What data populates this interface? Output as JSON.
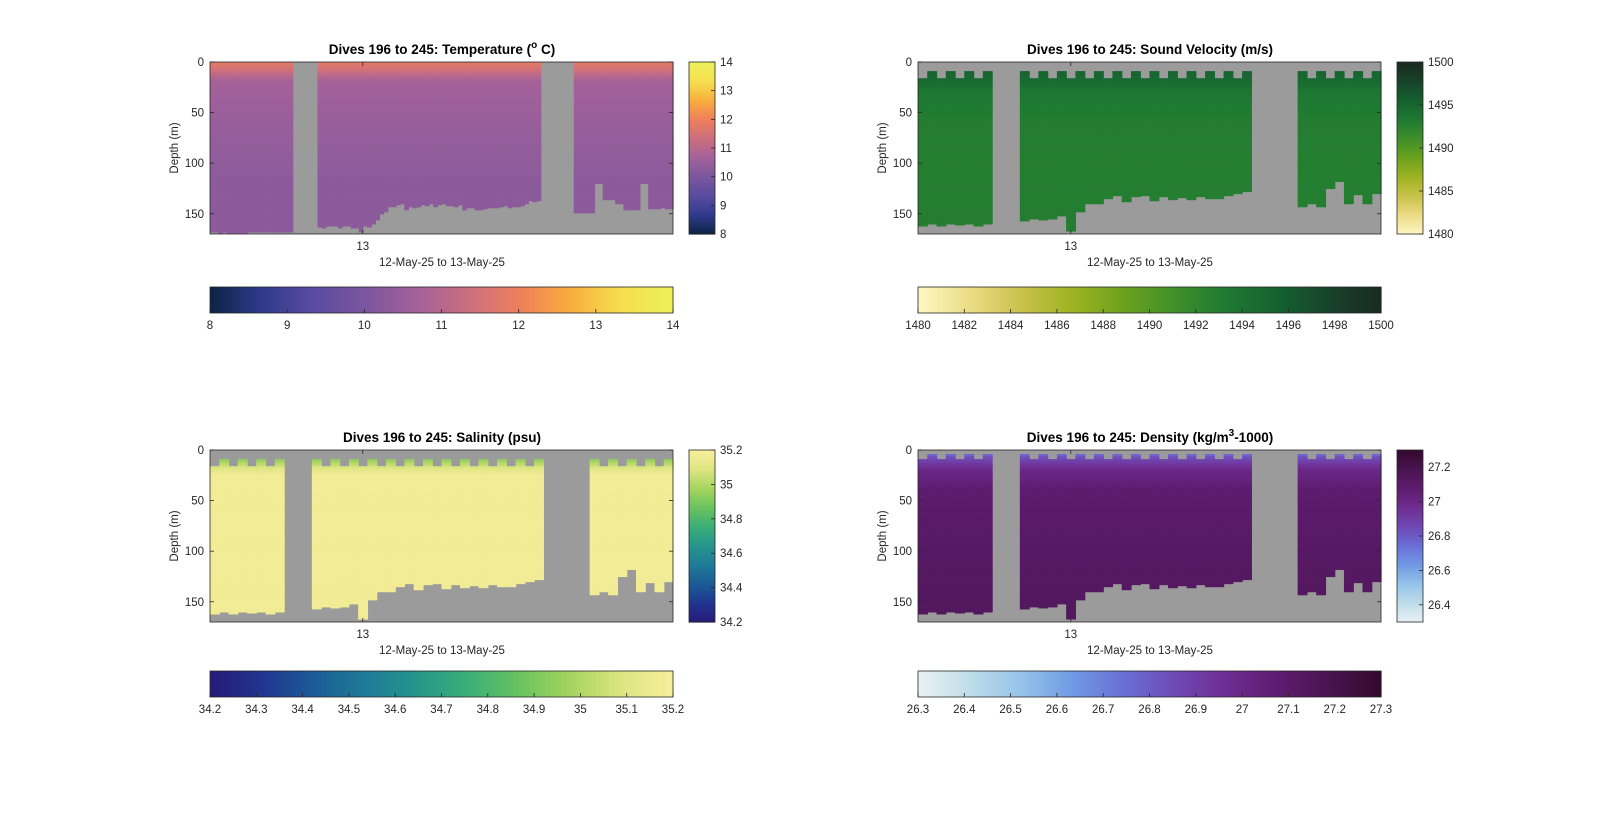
{
  "figure": {
    "background": "#ffffff",
    "no_data_color": "#9b9b9b"
  },
  "chart_data": [
    {
      "type": "heatmap",
      "id": "temperature",
      "title": "Dives 196 to 245: Temperature (",
      "title_sup": "o",
      "title_end": " C)",
      "ylabel": "Depth (m)",
      "xlabel": "12-May-25 to 13-May-25",
      "x_ticklabels": [
        "13"
      ],
      "x_tick_dive": 212.5,
      "x_range": [
        196,
        245
      ],
      "ylim": [
        0,
        170
      ],
      "y_reversed": true,
      "y_ticks": [
        0,
        50,
        100,
        150
      ],
      "y_ticklabels": [
        "0",
        "50",
        "100",
        "150"
      ],
      "colormap": [
        "#0d2343",
        "#2e3a8c",
        "#5a4ba0",
        "#7a569e",
        "#a2619a",
        "#cb6e7f",
        "#ee7f5b",
        "#f9ad3e",
        "#f5df4e",
        "#eef05a"
      ],
      "right_colorbar": {
        "ticks": [
          8,
          9,
          10,
          11,
          12,
          13,
          14
        ],
        "ticklabels": [
          "8",
          "9",
          "10",
          "11",
          "12",
          "13",
          "14"
        ]
      },
      "bottom_colorbar": {
        "ticks": [
          8,
          9,
          10,
          11,
          12,
          13,
          14
        ],
        "ticklabels": [
          "8",
          "9",
          "10",
          "11",
          "12",
          "13",
          "14"
        ]
      },
      "clim": [
        8,
        14
      ],
      "profile_depth_max": [
        168,
        168,
        169,
        168,
        169,
        169,
        169,
        169,
        169,
        168,
        168,
        168,
        168,
        168,
        168,
        168,
        168,
        168,
        168,
        168,
        null,
        null,
        null,
        null,
        null,
        null,
        163,
        164,
        162,
        162,
        162,
        164,
        162,
        162,
        164,
        164,
        168,
        162,
        163,
        160,
        156,
        150,
        148,
        143,
        143,
        141,
        140,
        146,
        143,
        144,
        143,
        141,
        142,
        140,
        143,
        141,
        140,
        142,
        142,
        143,
        141,
        146,
        144,
        144,
        146,
        146,
        145,
        144,
        144,
        144,
        143,
        142,
        144,
        143,
        143,
        142,
        140,
        137,
        138,
        137,
        null,
        null,
        null,
        null,
        null,
        null,
        null,
        null,
        149,
        149,
        149,
        149,
        149,
        120,
        120,
        136,
        136,
        136,
        140,
        140,
        146,
        146,
        146,
        146,
        120,
        120,
        145,
        145,
        145,
        144,
        145,
        145
      ],
      "values_by_depth": [
        {
          "depth": 0,
          "value": 11.8
        },
        {
          "depth": 5,
          "value": 11.6
        },
        {
          "depth": 10,
          "value": 11.3
        },
        {
          "depth": 15,
          "value": 10.9
        },
        {
          "depth": 20,
          "value": 10.7
        },
        {
          "depth": 40,
          "value": 10.6
        },
        {
          "depth": 60,
          "value": 10.5
        },
        {
          "depth": 90,
          "value": 10.4
        },
        {
          "depth": 120,
          "value": 10.3
        },
        {
          "depth": 170,
          "value": 10.3
        }
      ]
    },
    {
      "type": "heatmap",
      "id": "sound-velocity",
      "title": "Dives 196 to 245: Sound Velocity (m/s)",
      "ylabel": "Depth (m)",
      "xlabel": "12-May-25 to 13-May-25",
      "x_ticklabels": [
        "13"
      ],
      "x_tick_dive": 212.5,
      "x_range": [
        196,
        245
      ],
      "ylim": [
        0,
        170
      ],
      "y_reversed": true,
      "y_ticks": [
        0,
        50,
        100,
        150
      ],
      "y_ticklabels": [
        "0",
        "50",
        "100",
        "150"
      ],
      "colormap": [
        "#fdf7c4",
        "#ecdc86",
        "#c9c24b",
        "#9eb322",
        "#6ca21d",
        "#3f8f2a",
        "#1f7a32",
        "#15612f",
        "#17432a",
        "#1a2a1f"
      ],
      "right_colorbar": {
        "ticks": [
          1480,
          1485,
          1490,
          1495,
          1500
        ],
        "ticklabels": [
          "1480",
          "1485",
          "1490",
          "1495",
          "1500"
        ]
      },
      "bottom_colorbar": {
        "ticks": [
          1480,
          1482,
          1484,
          1486,
          1488,
          1490,
          1492,
          1494,
          1496,
          1498,
          1500
        ],
        "ticklabels": [
          "1480",
          "1482",
          "1484",
          "1486",
          "1488",
          "1490",
          "1492",
          "1494",
          "1496",
          "1498",
          "1500"
        ]
      },
      "clim": [
        1480,
        1500
      ],
      "profile_depth_min": [
        16,
        9,
        16,
        9,
        16,
        9,
        16,
        9,
        16,
        9,
        16,
        9,
        16,
        9,
        16,
        9,
        16,
        9,
        16,
        9,
        16,
        9,
        16,
        9,
        16,
        9,
        16,
        9,
        16,
        9,
        16,
        9,
        16,
        9,
        16,
        9,
        16,
        9,
        16,
        9,
        16,
        9,
        16,
        9,
        16,
        9,
        16,
        9,
        16,
        9
      ],
      "profile_depth_max": [
        162,
        160,
        162,
        160,
        161,
        160,
        162,
        160,
        null,
        null,
        null,
        157,
        155,
        156,
        155,
        152,
        167,
        148,
        140,
        140,
        135,
        132,
        138,
        133,
        132,
        137,
        133,
        136,
        134,
        136,
        133,
        135,
        135,
        132,
        130,
        128,
        null,
        null,
        null,
        null,
        null,
        143,
        140,
        143,
        125,
        118,
        140,
        131,
        140,
        130
      ],
      "values_by_depth": [
        {
          "depth": 0,
          "value": 1495.6
        },
        {
          "depth": 10,
          "value": 1495.2
        },
        {
          "depth": 20,
          "value": 1494.6
        },
        {
          "depth": 30,
          "value": 1493.6
        },
        {
          "depth": 60,
          "value": 1493.0
        },
        {
          "depth": 100,
          "value": 1492.9
        },
        {
          "depth": 170,
          "value": 1493.0
        }
      ]
    },
    {
      "type": "heatmap",
      "id": "salinity",
      "title": "Dives 196 to 245: Salinity (psu)",
      "ylabel": "Depth (m)",
      "xlabel": "12-May-25 to 13-May-25",
      "x_ticklabels": [
        "13"
      ],
      "x_tick_dive": 212.5,
      "x_range": [
        196,
        245
      ],
      "ylim": [
        0,
        170
      ],
      "y_reversed": true,
      "y_ticks": [
        0,
        50,
        100,
        150
      ],
      "y_ticklabels": [
        "0",
        "50",
        "100",
        "150"
      ],
      "colormap": [
        "#281a78",
        "#20358f",
        "#1b5b96",
        "#1f7a97",
        "#25958c",
        "#3aae78",
        "#68c35f",
        "#a5d45f",
        "#dde581",
        "#f8ee9c"
      ],
      "right_colorbar": {
        "ticks": [
          34.2,
          34.4,
          34.6,
          34.8,
          35,
          35.2
        ],
        "ticklabels": [
          "34.2",
          "34.4",
          "34.6",
          "34.8",
          "35",
          "35.2"
        ]
      },
      "bottom_colorbar": {
        "ticks": [
          34.2,
          34.3,
          34.4,
          34.5,
          34.6,
          34.7,
          34.8,
          34.9,
          35,
          35.1,
          35.2
        ],
        "ticklabels": [
          "34.2",
          "34.3",
          "34.4",
          "34.5",
          "34.6",
          "34.7",
          "34.8",
          "34.9",
          "35",
          "35.1",
          "35.2"
        ]
      },
      "clim": [
        34.2,
        35.2
      ],
      "profile_depth_min": [
        16,
        9,
        16,
        9,
        16,
        9,
        16,
        9,
        16,
        9,
        16,
        9,
        16,
        9,
        16,
        9,
        16,
        9,
        16,
        9,
        16,
        9,
        16,
        9,
        16,
        9,
        16,
        9,
        16,
        9,
        16,
        9,
        16,
        9,
        16,
        9,
        16,
        9,
        16,
        9,
        16,
        9,
        16,
        9,
        16,
        9,
        16,
        9,
        16,
        9
      ],
      "profile_depth_max": [
        162,
        160,
        162,
        160,
        161,
        160,
        162,
        160,
        null,
        null,
        null,
        157,
        155,
        156,
        155,
        152,
        167,
        148,
        140,
        140,
        135,
        132,
        138,
        133,
        132,
        137,
        133,
        136,
        134,
        136,
        133,
        135,
        135,
        132,
        130,
        128,
        null,
        null,
        null,
        null,
        null,
        143,
        140,
        143,
        125,
        118,
        140,
        131,
        140,
        130
      ],
      "values_by_depth": [
        {
          "depth": 0,
          "value": 34.85
        },
        {
          "depth": 10,
          "value": 34.95
        },
        {
          "depth": 18,
          "value": 35.1
        },
        {
          "depth": 25,
          "value": 35.17
        },
        {
          "depth": 170,
          "value": 35.17
        }
      ]
    },
    {
      "type": "heatmap",
      "id": "density",
      "title": "Dives 196 to 245: Density (kg/m",
      "title_sup": "3",
      "title_end": "-1000)",
      "ylabel": "Depth (m)",
      "xlabel": "12-May-25 to 13-May-25",
      "x_ticklabels": [
        "13"
      ],
      "x_tick_dive": 212.5,
      "x_range": [
        196,
        245
      ],
      "ylim": [
        0,
        170
      ],
      "y_reversed": true,
      "y_ticks": [
        0,
        50,
        100,
        150
      ],
      "y_ticklabels": [
        "0",
        "50",
        "100",
        "150"
      ],
      "colormap": [
        "#e9f2f5",
        "#bfdde9",
        "#95c4ea",
        "#7099e4",
        "#6a6fd6",
        "#7049b5",
        "#6e2d91",
        "#5e1c6f",
        "#4a1450",
        "#33092e"
      ],
      "right_colorbar": {
        "ticks": [
          26.4,
          26.6,
          26.8,
          27,
          27.2
        ],
        "ticklabels": [
          "26.4",
          "26.6",
          "26.8",
          "27",
          "27.2"
        ]
      },
      "bottom_colorbar": {
        "ticks": [
          26.3,
          26.4,
          26.5,
          26.6,
          26.7,
          26.8,
          26.9,
          27,
          27.1,
          27.2,
          27.3
        ],
        "ticklabels": [
          "26.3",
          "26.4",
          "26.5",
          "26.6",
          "26.7",
          "26.8",
          "26.9",
          "27",
          "27.1",
          "27.2",
          "27.3"
        ]
      },
      "clim": [
        26.3,
        27.3
      ],
      "profile_depth_min": [
        9,
        4,
        9,
        4,
        9,
        4,
        9,
        4,
        9,
        4,
        9,
        4,
        9,
        4,
        9,
        4,
        9,
        4,
        9,
        4,
        9,
        4,
        9,
        4,
        9,
        4,
        9,
        4,
        9,
        4,
        9,
        4,
        9,
        4,
        9,
        4,
        9,
        4,
        9,
        4,
        9,
        4,
        9,
        4,
        9,
        4,
        9,
        4,
        9,
        4
      ],
      "profile_depth_max": [
        162,
        160,
        162,
        160,
        161,
        160,
        162,
        160,
        null,
        null,
        null,
        157,
        155,
        156,
        155,
        152,
        167,
        148,
        140,
        140,
        135,
        132,
        138,
        133,
        132,
        137,
        133,
        136,
        134,
        136,
        133,
        135,
        135,
        132,
        130,
        128,
        null,
        null,
        null,
        null,
        null,
        143,
        140,
        143,
        125,
        118,
        140,
        131,
        140,
        130
      ],
      "values_by_depth": [
        {
          "depth": 0,
          "value": 26.65
        },
        {
          "depth": 8,
          "value": 26.85
        },
        {
          "depth": 20,
          "value": 27.0
        },
        {
          "depth": 40,
          "value": 27.08
        },
        {
          "depth": 100,
          "value": 27.12
        },
        {
          "depth": 170,
          "value": 27.14
        }
      ]
    }
  ]
}
